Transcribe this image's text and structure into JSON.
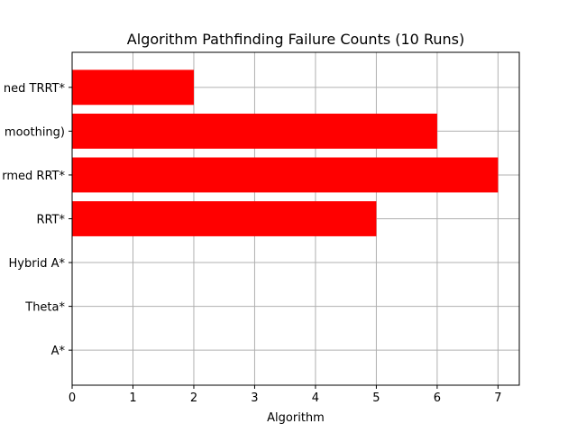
{
  "chart_data": {
    "type": "bar",
    "orientation": "horizontal",
    "title": "Algorithm Pathfinding Failure Counts (10 Runs)",
    "xlabel": "Algorithm",
    "ylabel": "",
    "categories": [
      "A*",
      "Theta*",
      "Hybrid A*",
      "RRT*",
      "Informed RRT*",
      "RRT* (with smoothing)",
      "Informed TRRT*"
    ],
    "categories_visible": [
      "A*",
      "Theta*",
      "Hybrid A*",
      "RRT*",
      "rmed RRT*",
      "moothing)",
      "ned TRRT*"
    ],
    "values": [
      0,
      0,
      0,
      5,
      7,
      6,
      2
    ],
    "xlim": [
      0,
      7.35
    ],
    "xticks": [
      0,
      1,
      2,
      3,
      4,
      5,
      6,
      7
    ],
    "grid": true,
    "bar_color": "#ff0000",
    "grid_color": "#b0b0b0"
  }
}
